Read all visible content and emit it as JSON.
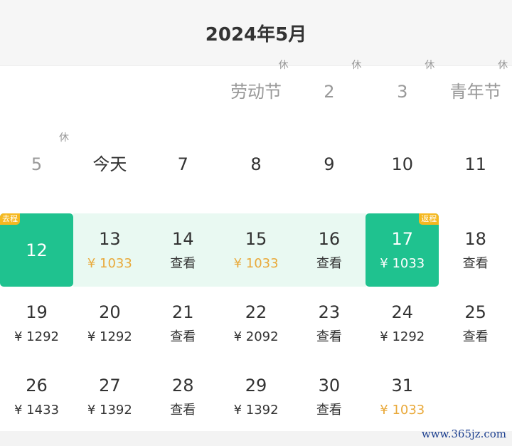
{
  "header": {
    "title": "2024年5月"
  },
  "colors": {
    "accent": "#1fc28f",
    "range": "#e9f9f2",
    "tag": "#f5b820",
    "low_price": "#e9a93a"
  },
  "days": [
    {
      "row": 0,
      "col": 3,
      "label": "劳动节",
      "rest": "休",
      "holiday": true
    },
    {
      "row": 0,
      "col": 4,
      "label": "2",
      "rest": "休",
      "holiday": true
    },
    {
      "row": 0,
      "col": 5,
      "label": "3",
      "rest": "休",
      "holiday": true
    },
    {
      "row": 0,
      "col": 6,
      "label": "青年节",
      "rest": "休",
      "holiday": true
    },
    {
      "row": 1,
      "col": 0,
      "label": "5",
      "rest": "休",
      "holiday": true
    },
    {
      "row": 1,
      "col": 1,
      "label": "今天"
    },
    {
      "row": 1,
      "col": 2,
      "label": "7"
    },
    {
      "row": 1,
      "col": 3,
      "label": "8"
    },
    {
      "row": 1,
      "col": 4,
      "label": "9"
    },
    {
      "row": 1,
      "col": 5,
      "label": "10"
    },
    {
      "row": 1,
      "col": 6,
      "label": "11"
    },
    {
      "row": 2,
      "col": 0,
      "label": "12",
      "tag": "去程",
      "selected": true
    },
    {
      "row": 2,
      "col": 1,
      "label": "13",
      "price": "¥ 1033",
      "low": true
    },
    {
      "row": 2,
      "col": 2,
      "label": "14",
      "price": "查看"
    },
    {
      "row": 2,
      "col": 3,
      "label": "15",
      "price": "¥ 1033",
      "low": true
    },
    {
      "row": 2,
      "col": 4,
      "label": "16",
      "price": "查看"
    },
    {
      "row": 2,
      "col": 5,
      "label": "17",
      "price": "¥ 1033",
      "tag": "返程",
      "selected": true
    },
    {
      "row": 2,
      "col": 6,
      "label": "18",
      "price": "查看"
    },
    {
      "row": 3,
      "col": 0,
      "label": "19",
      "price": "¥ 1292"
    },
    {
      "row": 3,
      "col": 1,
      "label": "20",
      "price": "¥ 1292"
    },
    {
      "row": 3,
      "col": 2,
      "label": "21",
      "price": "查看"
    },
    {
      "row": 3,
      "col": 3,
      "label": "22",
      "price": "¥ 2092"
    },
    {
      "row": 3,
      "col": 4,
      "label": "23",
      "price": "查看"
    },
    {
      "row": 3,
      "col": 5,
      "label": "24",
      "price": "¥ 1292"
    },
    {
      "row": 3,
      "col": 6,
      "label": "25",
      "price": "查看"
    },
    {
      "row": 4,
      "col": 0,
      "label": "26",
      "price": "¥ 1433"
    },
    {
      "row": 4,
      "col": 1,
      "label": "27",
      "price": "¥ 1392"
    },
    {
      "row": 4,
      "col": 2,
      "label": "28",
      "price": "查看"
    },
    {
      "row": 4,
      "col": 3,
      "label": "29",
      "price": "¥ 1392"
    },
    {
      "row": 4,
      "col": 4,
      "label": "30",
      "price": "查看"
    },
    {
      "row": 4,
      "col": 5,
      "label": "31",
      "price": "¥ 1033",
      "low": true
    }
  ],
  "watermark": "www.365jz.com"
}
